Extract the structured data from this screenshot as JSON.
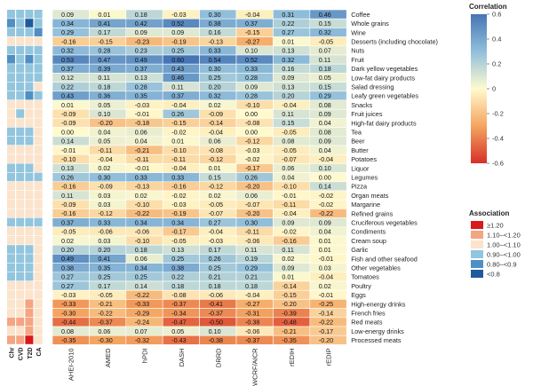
{
  "chart_data": {
    "type": "heatmap",
    "title": "",
    "indices": [
      "AHEI-2010",
      "AMED",
      "hPDI",
      "DASH",
      "DRRD",
      "WCRF/AICR",
      "rEDIH",
      "rEDIP"
    ],
    "outcomes": [
      "Chr",
      "CVD",
      "T2D",
      "CA"
    ],
    "foods": [
      "Coffee",
      "Whole grains",
      "Wine",
      "Desserts (including chocolate)",
      "Nuts",
      "Fruit",
      "Dark yellow vegetables",
      "Low-fat dairy products",
      "Salad dressing",
      "Leafy green vegetables",
      "Snacks",
      "Fruit juices",
      "High-fat dairy products",
      "Tea",
      "Beer",
      "Butter",
      "Potatoes",
      "Liquor",
      "Legumes",
      "Pizza",
      "Organ meats",
      "Margarine",
      "Refined grains",
      "Cruciferous vegetables",
      "Condiments",
      "Cream soup",
      "Garlic",
      "Fish and other seafood",
      "Other vegetables",
      "Tomatoes",
      "Poultry",
      "Eggs",
      "High-energy drinks",
      "French fries",
      "Red meats",
      "Low-energy drinks",
      "Processed meats"
    ],
    "values": [
      [
        "0.09",
        "0.01",
        "0.18",
        "-0.03",
        "0.30",
        "-0.04",
        "0.31",
        "0.46"
      ],
      [
        "0.34",
        "0.41",
        "0.42",
        "0.52",
        "0.38",
        "0.37",
        "0.22",
        "0.15"
      ],
      [
        "0.29",
        "0.17",
        "0.09",
        "0.09",
        "0.16",
        "-0.15",
        "0.27",
        "0.32"
      ],
      [
        "-0.16",
        "-0.15",
        "-0.23",
        "-0.19",
        "-0.13",
        "-0.27",
        "0.01",
        "-0.05"
      ],
      [
        "0.32",
        "0.28",
        "0.23",
        "0.25",
        "0.33",
        "0.10",
        "0.13",
        "0.07"
      ],
      [
        "0.53",
        "0.47",
        "0.49",
        "0.60",
        "0.54",
        "0.52",
        "0.32",
        "0.11"
      ],
      [
        "0.37",
        "0.39",
        "0.37",
        "0.43",
        "0.30",
        "0.33",
        "0.16",
        "0.18"
      ],
      [
        "0.12",
        "0.11",
        "0.13",
        "0.46",
        "0.25",
        "0.28",
        "0.09",
        "0.05"
      ],
      [
        "0.22",
        "0.18",
        "0.28",
        "0.11",
        "0.20",
        "0.09",
        "0.13",
        "0.15"
      ],
      [
        "0.43",
        "0.36",
        "0.35",
        "0.37",
        "0.32",
        "0.28",
        "0.20",
        "0.29"
      ],
      [
        "0.01",
        "0.05",
        "-0.03",
        "-0.04",
        "0.02",
        "-0.10",
        "-0.04",
        "0.08"
      ],
      [
        "-0.09",
        "0.10",
        "-0.01",
        "0.26",
        "-0.09",
        "0.00",
        "0.11",
        "0.09"
      ],
      [
        "-0.09",
        "-0.20",
        "-0.18",
        "-0.15",
        "-0.14",
        "-0.08",
        "0.15",
        "0.04"
      ],
      [
        "0.00",
        "0.04",
        "0.06",
        "-0.02",
        "-0.04",
        "0.00",
        "-0.05",
        "0.08"
      ],
      [
        "0.14",
        "0.05",
        "0.04",
        "0.01",
        "0.06",
        "-0.12",
        "0.08",
        "0.09"
      ],
      [
        "-0.01",
        "-0.11",
        "-0.21",
        "-0.10",
        "-0.08",
        "-0.03",
        "-0.05",
        "0.04"
      ],
      [
        "-0.10",
        "-0.04",
        "-0.11",
        "-0.11",
        "-0.12",
        "-0.02",
        "-0.07",
        "-0.04"
      ],
      [
        "0.13",
        "0.02",
        "-0.01",
        "-0.04",
        "0.01",
        "-0.17",
        "0.06",
        "0.10"
      ],
      [
        "0.26",
        "0.30",
        "0.33",
        "0.33",
        "0.15",
        "0.26",
        "0.04",
        "0.00"
      ],
      [
        "-0.16",
        "-0.09",
        "-0.13",
        "-0.16",
        "-0.12",
        "-0.20",
        "-0.10",
        "0.14"
      ],
      [
        "0.11",
        "0.03",
        "0.02",
        "-0.02",
        "0.02",
        "0.06",
        "-0.01",
        "-0.02"
      ],
      [
        "-0.09",
        "0.03",
        "-0.10",
        "-0.03",
        "-0.05",
        "-0.07",
        "-0.11",
        "-0.02"
      ],
      [
        "-0.16",
        "-0.12",
        "-0.22",
        "-0.19",
        "-0.07",
        "-0.20",
        "-0.04",
        "-0.22"
      ],
      [
        "0.37",
        "0.33",
        "0.34",
        "0.34",
        "0.27",
        "0.30",
        "0.09",
        "0.09"
      ],
      [
        "-0.05",
        "-0.06",
        "-0.06",
        "-0.17",
        "-0.04",
        "-0.11",
        "-0.02",
        "0.04"
      ],
      [
        "0.02",
        "0.03",
        "-0.10",
        "-0.05",
        "-0.03",
        "-0.06",
        "-0.16",
        "0.01"
      ],
      [
        "0.20",
        "0.20",
        "0.18",
        "0.13",
        "0.17",
        "0.11",
        "0.11",
        "0.01"
      ],
      [
        "0.49",
        "0.41",
        "0.06",
        "0.25",
        "0.26",
        "0.19",
        "0.02",
        "-0.01"
      ],
      [
        "0.38",
        "0.35",
        "0.34",
        "0.38",
        "0.25",
        "0.29",
        "0.09",
        "0.03"
      ],
      [
        "0.27",
        "0.25",
        "0.25",
        "0.22",
        "0.21",
        "0.21",
        "0.01",
        "-0.04"
      ],
      [
        "0.27",
        "0.17",
        "0.14",
        "0.18",
        "0.18",
        "0.18",
        "-0.14",
        "0.02"
      ],
      [
        "-0.03",
        "-0.05",
        "-0.22",
        "-0.08",
        "-0.06",
        "-0.04",
        "-0.15",
        "-0.01"
      ],
      [
        "-0.33",
        "-0.21",
        "-0.33",
        "-0.37",
        "-0.41",
        "-0.27",
        "-0.20",
        "-0.25"
      ],
      [
        "-0.30",
        "-0.22",
        "-0.29",
        "-0.34",
        "-0.37",
        "-0.31",
        "-0.39",
        "-0.14"
      ],
      [
        "-0.44",
        "-0.37",
        "-0.24",
        "-0.47",
        "-0.50",
        "-0.38",
        "-0.48",
        "-0.22"
      ],
      [
        "0.08",
        "0.06",
        "0.07",
        "0.05",
        "0.10",
        "-0.06",
        "-0.21",
        "-0.17"
      ],
      [
        "-0.35",
        "-0.30",
        "-0.32",
        "-0.43",
        "-0.38",
        "-0.37",
        "-0.35",
        "-0.20"
      ]
    ],
    "associations": [
      [
        "0.95",
        "0.9",
        "0.95",
        "0.92"
      ],
      [
        "0.85",
        "0.9",
        "0.75",
        "0.9"
      ],
      [
        "0.9",
        "0.9",
        "0.9",
        "0.85"
      ],
      [
        "1.05",
        "1.0",
        "1.05",
        "1.0"
      ],
      [
        "0.9",
        "0.95",
        "0.9",
        "0.95"
      ],
      [
        "0.85",
        "0.9",
        "0.8",
        "0.95"
      ],
      [
        "0.9",
        "0.9",
        "0.9",
        "0.95"
      ],
      [
        "0.95",
        "0.95",
        "0.9",
        "0.95"
      ],
      [
        "0.95",
        "0.95",
        "0.95",
        "1.0"
      ],
      [
        "0.9",
        "0.9",
        "0.85",
        "0.95"
      ],
      [
        "1.0",
        "1.0",
        "1.05",
        "1.0"
      ],
      [
        "1.0",
        "0.95",
        "1.05",
        "1.0"
      ],
      [
        "1.0",
        "1.05",
        "1.0",
        "1.0"
      ],
      [
        "0.95",
        "0.95",
        "0.95",
        "1.0"
      ],
      [
        "0.95",
        "0.95",
        "0.9",
        "1.0"
      ],
      [
        "1.05",
        "1.05",
        "1.05",
        "1.0"
      ],
      [
        "1.05",
        "1.05",
        "1.05",
        "1.0"
      ],
      [
        "0.95",
        "0.95",
        "0.95",
        "1.05"
      ],
      [
        "0.95",
        "0.95",
        "0.95",
        "0.95"
      ],
      [
        "1.05",
        "1.05",
        "1.05",
        "1.0"
      ],
      [
        "1.0",
        "1.05",
        "1.0",
        "1.0"
      ],
      [
        "1.0",
        "1.05",
        "1.0",
        "1.0"
      ],
      [
        "1.05",
        "1.0",
        "1.05",
        "1.0"
      ],
      [
        "0.95",
        "0.95",
        "0.95",
        "0.95"
      ],
      [
        "1.0",
        "1.0",
        "1.0",
        "1.0"
      ],
      [
        "1.0",
        "1.0",
        "1.0",
        "1.0"
      ],
      [
        "0.95",
        "0.95",
        "0.95",
        "1.0"
      ],
      [
        "0.95",
        "0.95",
        "0.95",
        "1.0"
      ],
      [
        "0.95",
        "0.95",
        "0.95",
        "1.0"
      ],
      [
        "0.95",
        "0.95",
        "0.95",
        "1.0"
      ],
      [
        "1.0",
        "1.0",
        "1.0",
        "1.0"
      ],
      [
        "1.0",
        "1.0",
        "1.05",
        "1.0"
      ],
      [
        "1.05",
        "1.05",
        "1.15",
        "1.0"
      ],
      [
        "1.05",
        "1.05",
        "1.1",
        "1.05"
      ],
      [
        "1.1",
        "1.1",
        "1.15",
        "1.05"
      ],
      [
        "1.05",
        "1.05",
        "1.15",
        "1.0"
      ],
      [
        "1.1",
        "1.1",
        "1.2",
        "1.05"
      ]
    ],
    "correlation_legend": {
      "title": "Correlation",
      "ticks": [
        "0.6",
        "0.4",
        "0.2",
        "0",
        "-0.2",
        "-0.4",
        "-0.6"
      ],
      "range": [
        -0.6,
        0.6
      ]
    },
    "association_legend": {
      "title": "Association",
      "items": [
        {
          "label": "≥1.20",
          "color": "#d7191c"
        },
        {
          "label": "1.10–<1.20",
          "color": "#f4a582"
        },
        {
          "label": "1.00–<1.10",
          "color": "#fbe3cc"
        },
        {
          "label": "0.90–<1.00",
          "color": "#92c5de"
        },
        {
          "label": "0.80–<0.9",
          "color": "#4f8fc4"
        },
        {
          "label": "<0.8",
          "color": "#1f5b9b"
        }
      ]
    }
  }
}
